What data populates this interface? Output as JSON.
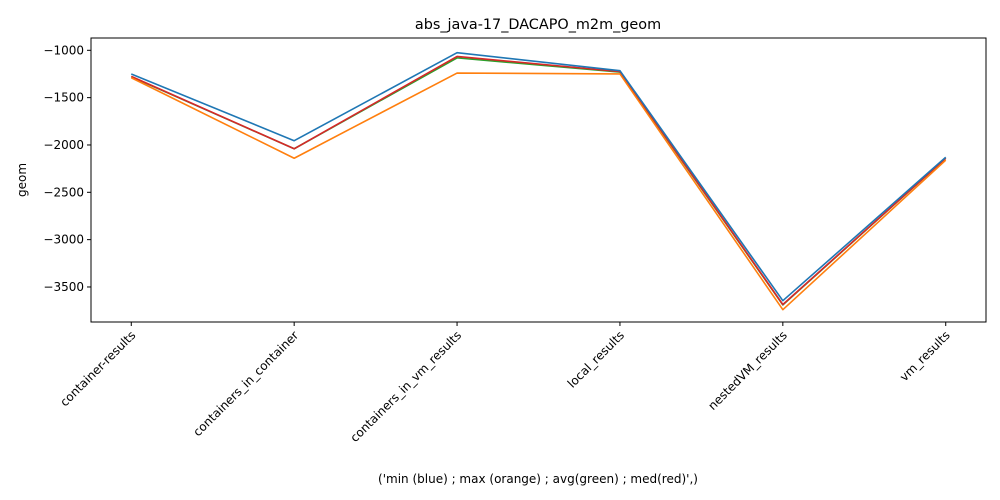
{
  "chart_data": {
    "type": "line",
    "title": "abs_java-17_DACAPO_m2m_geom",
    "xlabel": "('min (blue) ; max (orange) ; avg(green) ; med(red)',)",
    "ylabel": "geom",
    "categories": [
      "container-results",
      "containers_in_container",
      "containers_in_vm_results",
      "local_results",
      "nestedVM_results",
      "vm_results"
    ],
    "yticks": [
      -3500,
      -3000,
      -2500,
      -2000,
      -1500,
      -1000
    ],
    "ylim": [
      -3870,
      -870
    ],
    "grid": false,
    "series": [
      {
        "color": "#2ca02c",
        "values": [
          -1280,
          -2040,
          -1080,
          -1230,
          -3690,
          -2140
        ]
      },
      {
        "color": "#d62728",
        "values": [
          -1275,
          -2040,
          -1065,
          -1225,
          -3685,
          -2140
        ]
      },
      {
        "color": "#ff7f0e",
        "values": [
          -1290,
          -2140,
          -1240,
          -1250,
          -3740,
          -2160
        ]
      },
      {
        "color": "#1f77b4",
        "values": [
          -1250,
          -1955,
          -1025,
          -1215,
          -3645,
          -2130
        ]
      }
    ]
  }
}
